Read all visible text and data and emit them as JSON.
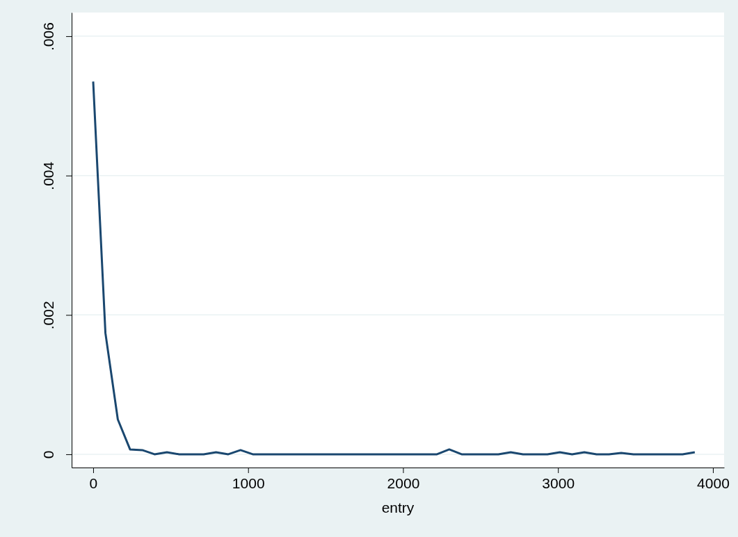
{
  "chart_data": {
    "type": "line",
    "xlabel": "entry",
    "x": [
      0,
      79,
      159,
      238,
      317,
      396,
      476,
      555,
      634,
      713,
      793,
      872,
      951,
      1030,
      1110,
      1189,
      1268,
      1347,
      1427,
      1506,
      1585,
      1664,
      1744,
      1823,
      1902,
      1981,
      2061,
      2140,
      2219,
      2298,
      2378,
      2457,
      2536,
      2615,
      2695,
      2774,
      2853,
      2932,
      3012,
      3091,
      3170,
      3249,
      3329,
      3408,
      3487,
      3566,
      3646,
      3725,
      3804,
      3883
    ],
    "series": [
      {
        "color": "#1a476f",
        "values": [
          0.00535,
          0.00174,
          0.0005,
          7e-05,
          6e-05,
          0,
          3e-05,
          0,
          0,
          0,
          3e-05,
          0,
          6e-05,
          0,
          0,
          0,
          0,
          0,
          0,
          0,
          0,
          0,
          0,
          0,
          0,
          0,
          0,
          0,
          0,
          7e-05,
          0,
          0,
          0,
          0,
          3e-05,
          0,
          0,
          0,
          3e-05,
          0,
          3e-05,
          0,
          0,
          2e-05,
          0,
          0,
          0,
          0,
          0,
          3e-05
        ]
      }
    ],
    "xlim": [
      -139,
      4072
    ],
    "xticks": [
      0,
      1000,
      2000,
      3000,
      4000
    ],
    "ylim": [
      -0.00019,
      0.00634
    ],
    "yticks": [
      {
        "value": 0,
        "label": "0"
      },
      {
        "value": 0.002,
        "label": ".002"
      },
      {
        "value": 0.004,
        "label": ".004"
      },
      {
        "value": 0.006,
        "label": ".006"
      }
    ],
    "grid": "y",
    "marker": "none",
    "line_style": "solid"
  }
}
